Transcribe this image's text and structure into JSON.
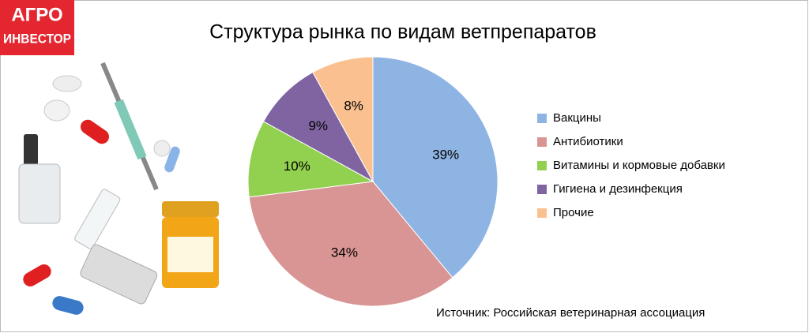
{
  "logo": [
    "АГРО",
    "ИНВЕСТОР"
  ],
  "chart_data": {
    "type": "pie",
    "title": "Структура рынка по видам ветпрепаратов",
    "categories": [
      "Вакцины",
      "Антибиотики",
      "Витамины и кормовые добавки",
      "Гигиена и дезинфекция",
      "Прочие"
    ],
    "values": [
      39,
      34,
      10,
      9,
      8
    ],
    "value_labels": [
      "39%",
      "34%",
      "10%",
      "9%",
      "8%"
    ],
    "colors": [
      "#8eb4e3",
      "#d99594",
      "#92d050",
      "#8064a2",
      "#fac090"
    ],
    "legend": "right",
    "source": "Источник: Российская ветеринарная ассоциация"
  }
}
